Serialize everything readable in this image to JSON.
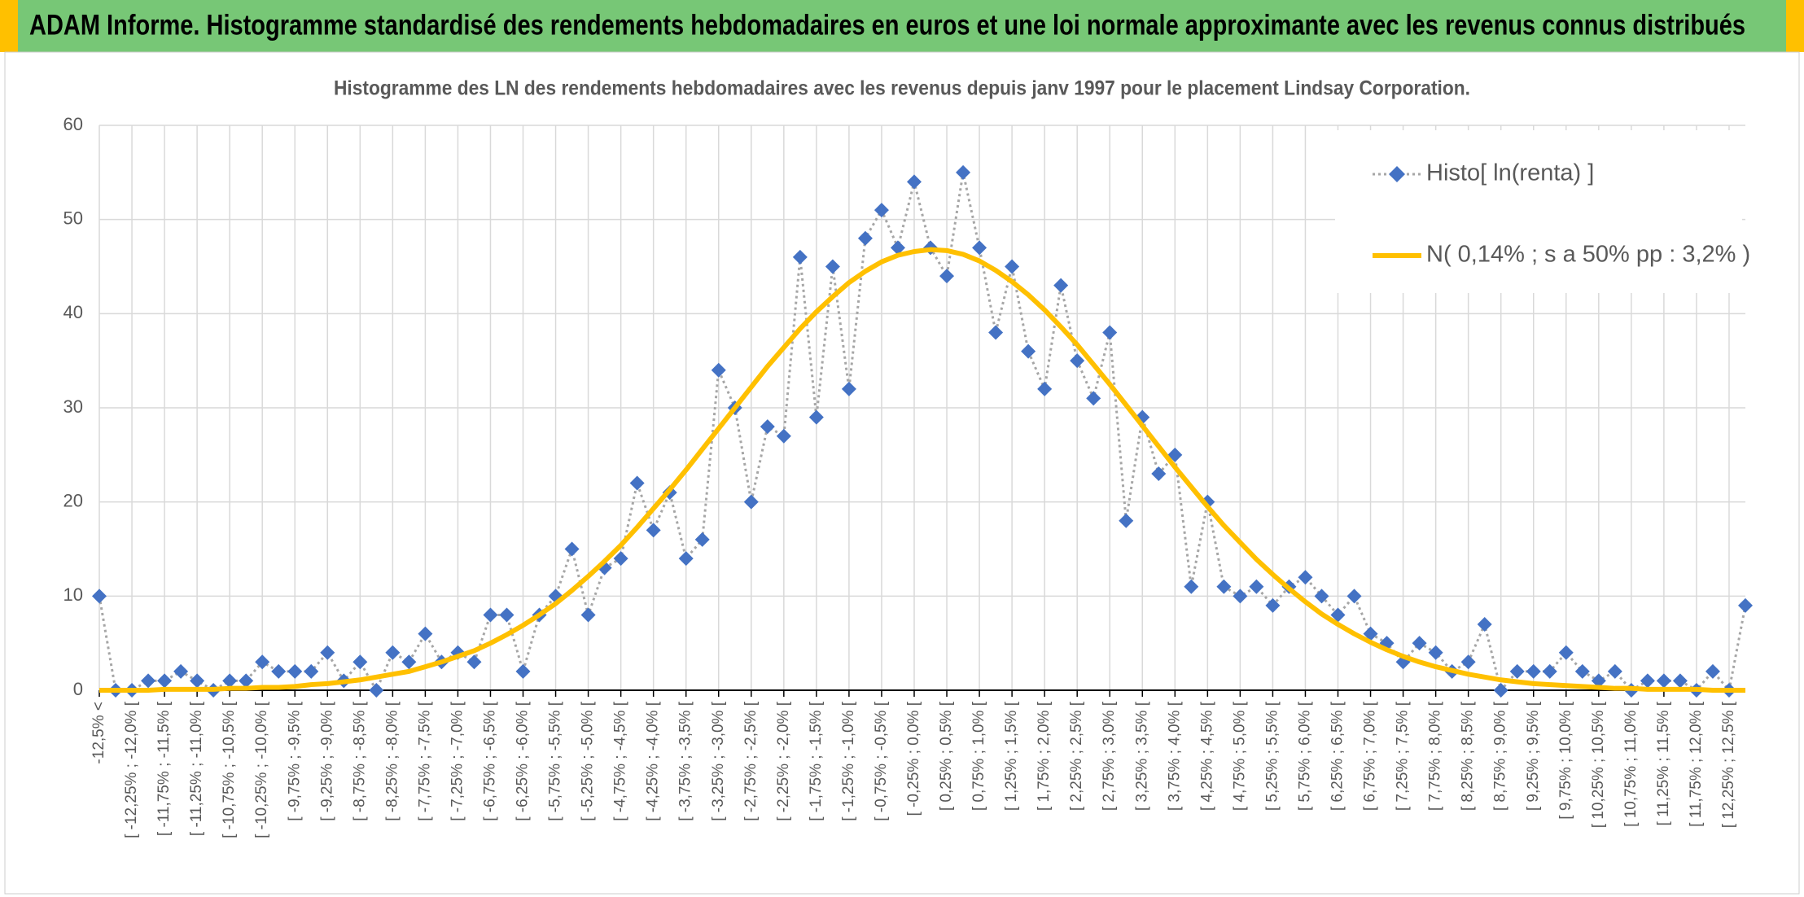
{
  "header": {
    "title": "ADAM Informe. Histogramme standardisé des rendements hebdomadaires en euros et une loi normale approximante avec les revenus connus distribués"
  },
  "chart_data": {
    "type": "line",
    "title": "Histogramme des LN des rendements hebdomadaires avec les revenus depuis janv 1997 pour le placement Lindsay Corporation.",
    "categories": [
      "-12,5% <",
      null,
      "[ -12,25% ; -12,0% [",
      null,
      "[ -11,75% ; -11,5% [",
      null,
      "[ -11,25% ; -11,0% [",
      null,
      "[ -10,75% ; -10,5% [",
      null,
      "[ -10,25% ; -10,0% [",
      null,
      "[ -9,75% ; -9,5% [",
      null,
      "[ -9,25% ; -9,0% [",
      null,
      "[ -8,75% ; -8,5% [",
      null,
      "[ -8,25% ; -8,0% [",
      null,
      "[ -7,75% ; -7,5% [",
      null,
      "[ -7,25% ; -7,0% [",
      null,
      "[ -6,75% ; -6,5% [",
      null,
      "[ -6,25% ; -6,0% [",
      null,
      "[ -5,75% ; -5,5% [",
      null,
      "[ -5,25% ; -5,0% [",
      null,
      "[ -4,75% ; -4,5% [",
      null,
      "[ -4,25% ; -4,0% [",
      null,
      "[ -3,75% ; -3,5% [",
      null,
      "[ -3,25% ; -3,0% [",
      null,
      "[ -2,75% ; -2,5% [",
      null,
      "[ -2,25% ; -2,0% [",
      null,
      "[ -1,75% ; -1,5% [",
      null,
      "[ -1,25% ; -1,0% [",
      null,
      "[ -0,75% ; -0,5% [",
      null,
      "[ -0,25% ; 0,0% [",
      null,
      "[ 0,25% ; 0,5% [",
      null,
      "[ 0,75% ; 1,0% [",
      null,
      "[ 1,25% ; 1,5% [",
      null,
      "[ 1,75% ; 2,0% [",
      null,
      "[ 2,25% ; 2,5% [",
      null,
      "[ 2,75% ; 3,0% [",
      null,
      "[ 3,25% ; 3,5% [",
      null,
      "[ 3,75% ; 4,0% [",
      null,
      "[ 4,25% ; 4,5% [",
      null,
      "[ 4,75% ; 5,0% [",
      null,
      "[ 5,25% ; 5,5% [",
      null,
      "[ 5,75% ; 6,0% [",
      null,
      "[ 6,25% ; 6,5% [",
      null,
      "[ 6,75% ; 7,0% [",
      null,
      "[ 7,25% ; 7,5% [",
      null,
      "[ 7,75% ; 8,0% [",
      null,
      "[ 8,25% ; 8,5% [",
      null,
      "[ 8,75% ; 9,0% [",
      null,
      "[ 9,25% ; 9,5% [",
      null,
      "[ 9,75% ; 10,0% [",
      null,
      "[ 10,25% ; 10,5% [",
      null,
      "[ 10,75% ; 11,0% [",
      null,
      "[ 11,25% ; 11,5% [",
      null,
      "[ 11,75% ; 12,0% [",
      null,
      "[ 12,25% ; 12,5% [",
      null
    ],
    "series": [
      {
        "name": "Histo[ ln(renta) ]",
        "color": "#4472c4",
        "line_color": "#a6a6a6",
        "marker": "diamond",
        "values": [
          10,
          0,
          0,
          1,
          1,
          2,
          1,
          0,
          1,
          1,
          3,
          2,
          2,
          2,
          4,
          1,
          3,
          0,
          4,
          3,
          6,
          3,
          4,
          3,
          8,
          8,
          2,
          8,
          10,
          15,
          8,
          13,
          14,
          22,
          17,
          21,
          14,
          16,
          34,
          30,
          20,
          28,
          27,
          46,
          29,
          45,
          32,
          48,
          51,
          47,
          54,
          47,
          44,
          55,
          47,
          38,
          45,
          36,
          32,
          43,
          35,
          31,
          38,
          18,
          29,
          23,
          25,
          11,
          20,
          11,
          10,
          11,
          9,
          11,
          12,
          10,
          8,
          10,
          6,
          5,
          3,
          5,
          4,
          2,
          3,
          7,
          0,
          2,
          2,
          2,
          4,
          2,
          1,
          2,
          0,
          1,
          1,
          1,
          0,
          2,
          0,
          9
        ]
      },
      {
        "name": "N( 0,14% ; s a 50% pp : 3,2% )",
        "color": "#ffc000",
        "values": [
          0.0,
          0.0,
          0.0,
          0.0,
          0.1,
          0.1,
          0.1,
          0.1,
          0.2,
          0.2,
          0.3,
          0.3,
          0.4,
          0.6,
          0.7,
          0.9,
          1.1,
          1.4,
          1.7,
          2.0,
          2.5,
          3.0,
          3.6,
          4.2,
          5.0,
          5.9,
          6.9,
          8.0,
          9.2,
          10.6,
          12.1,
          13.7,
          15.4,
          17.3,
          19.3,
          21.3,
          23.4,
          25.6,
          27.8,
          30.0,
          32.2,
          34.4,
          36.4,
          38.4,
          40.2,
          41.8,
          43.3,
          44.5,
          45.5,
          46.2,
          46.6,
          46.8,
          46.7,
          46.3,
          45.6,
          44.6,
          43.4,
          42.0,
          40.4,
          38.6,
          36.7,
          34.6,
          32.5,
          30.3,
          28.1,
          25.9,
          23.7,
          21.6,
          19.5,
          17.5,
          15.7,
          13.9,
          12.3,
          10.8,
          9.4,
          8.1,
          7.0,
          6.0,
          5.1,
          4.3,
          3.6,
          3.0,
          2.5,
          2.1,
          1.7,
          1.4,
          1.1,
          0.9,
          0.7,
          0.6,
          0.5,
          0.4,
          0.3,
          0.2,
          0.2,
          0.1,
          0.1,
          0.1,
          0.1,
          0.0,
          0.0,
          0.0
        ]
      }
    ],
    "ylim": [
      0,
      60
    ],
    "yticks": [
      0,
      10,
      20,
      30,
      40,
      50,
      60
    ],
    "grid": true,
    "legend": "upper right"
  }
}
